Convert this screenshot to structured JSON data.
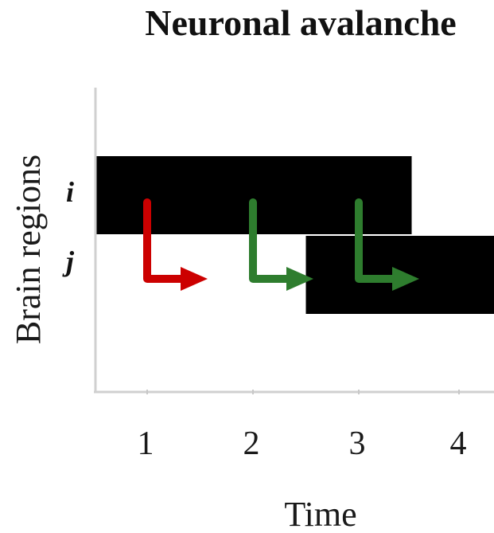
{
  "title": "Neuronal avalanche",
  "y_axis_title": "Brain regions",
  "x_axis_title": "Time",
  "rows": [
    {
      "id": "row-i",
      "label": "i"
    },
    {
      "id": "row-j",
      "label": "j"
    }
  ],
  "time_ticks": [
    "1",
    "2",
    "3",
    "4"
  ],
  "activity": [
    {
      "region": "i",
      "start": 0.5,
      "end": 3.5
    },
    {
      "region": "j",
      "start": 2.5,
      "end": 4.5
    }
  ],
  "arrows": [
    {
      "time": 1,
      "color": "#cc0000"
    },
    {
      "time": 2,
      "color": "#2e7d2e"
    },
    {
      "time": 3,
      "color": "#2e7d2e"
    }
  ],
  "colors": {
    "active": "#000000",
    "axis": "#d0d0d0",
    "background": "#ffffff"
  }
}
